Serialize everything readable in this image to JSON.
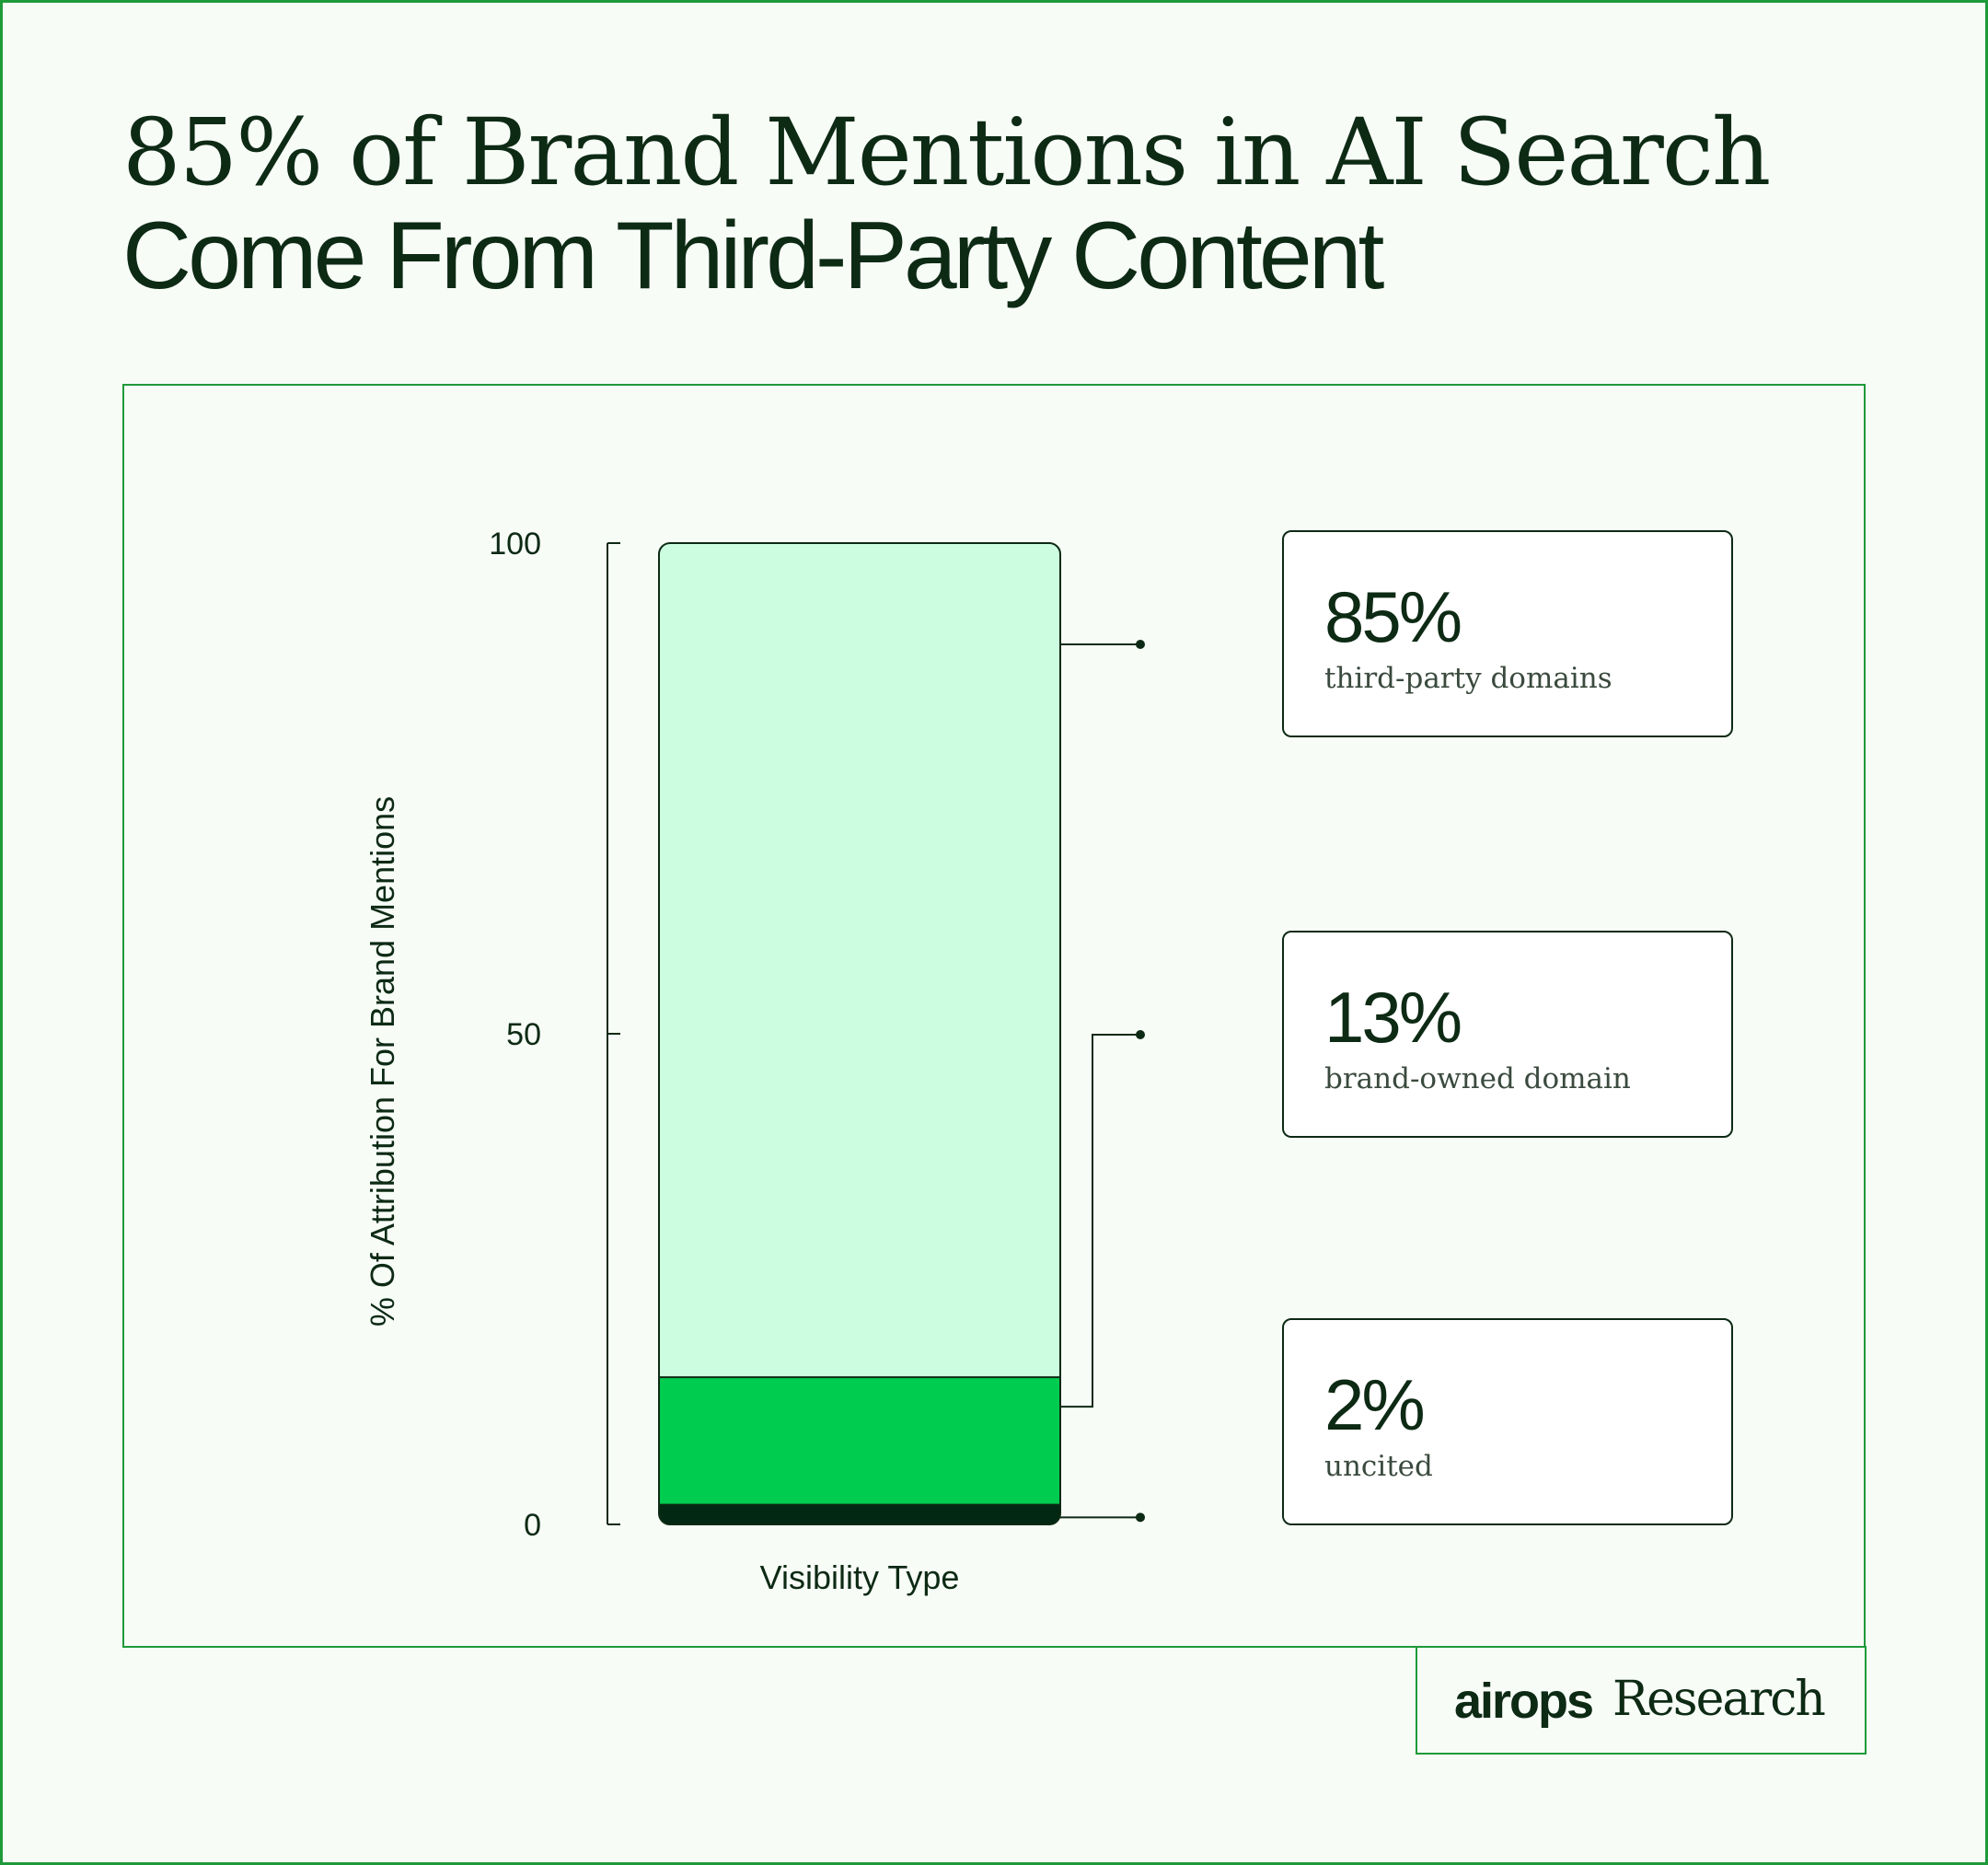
{
  "header": {
    "title_line1": "85% of Brand Mentions in AI Search",
    "title_line2": "Come From Third-Party Content"
  },
  "chart_data": {
    "type": "bar",
    "stacked": true,
    "title": "85% of Brand Mentions in AI Search Come From Third-Party Content",
    "xlabel": "Visibility Type",
    "ylabel": "% Of Attribution For Brand Mentions",
    "ylim": [
      0,
      100
    ],
    "yticks": [
      0,
      50,
      100
    ],
    "grid": false,
    "legend": "callouts-right",
    "series": [
      {
        "name": "third-party domains",
        "value": 85,
        "display": "85%",
        "color": "#ccfde0"
      },
      {
        "name": "brand-owned domain",
        "value": 13,
        "display": "13%",
        "color": "#00cc4f"
      },
      {
        "name": "uncited",
        "value": 2,
        "display": "2%",
        "color": "#022712"
      }
    ]
  },
  "brand": {
    "logo": "airops",
    "suffix": "Research"
  },
  "colors": {
    "background": "#f7fcf7",
    "border": "#1f9a3a",
    "ink": "#0d2a14"
  }
}
